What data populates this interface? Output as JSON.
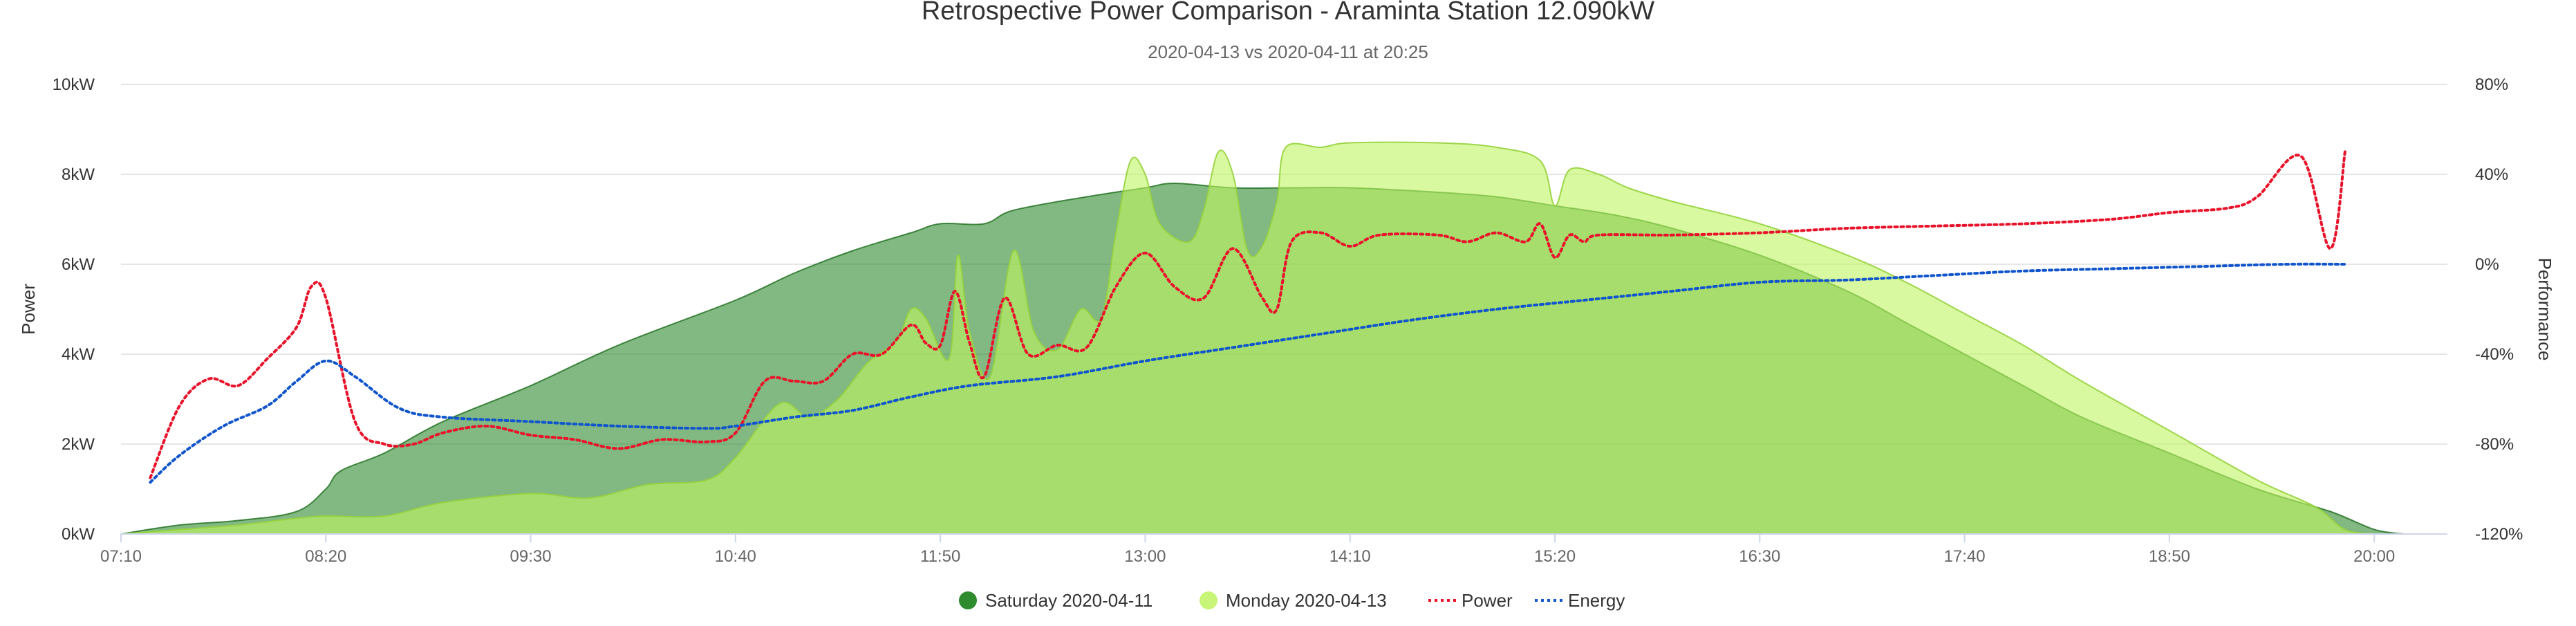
{
  "chart_data": {
    "type": "area",
    "title": "Retrospective Power Comparison - Araminta Station 12.090kW",
    "subtitle": "2020-04-13 vs 2020-04-11 at 20:25",
    "ylabel": "Power",
    "y2label": "Performance",
    "y_ticks": [
      "0kW",
      "2kW",
      "4kW",
      "6kW",
      "8kW",
      "10kW"
    ],
    "y2_ticks": [
      "-120%",
      "-80%",
      "-40%",
      "0%",
      "40%",
      "80%"
    ],
    "x_ticks": [
      "07:10",
      "08:20",
      "09:30",
      "10:40",
      "11:50",
      "13:00",
      "14:10",
      "15:20",
      "16:30",
      "17:40",
      "18:50",
      "20:00"
    ],
    "xlim": [
      "07:10",
      "20:25"
    ],
    "ylim": [
      0,
      10
    ],
    "y2lim": [
      -120,
      80
    ],
    "grid": true,
    "legend_position": "bottom",
    "series": [
      {
        "name": "Saturday 2020-04-11",
        "axis": "left",
        "unit": "kW",
        "color": "#2e8b2e",
        "points": [
          [
            "07:10",
            0
          ],
          [
            "07:30",
            0.2
          ],
          [
            "07:50",
            0.3
          ],
          [
            "08:10",
            0.5
          ],
          [
            "08:20",
            1.0
          ],
          [
            "08:25",
            1.4
          ],
          [
            "08:40",
            1.8
          ],
          [
            "09:00",
            2.5
          ],
          [
            "09:30",
            3.3
          ],
          [
            "10:00",
            4.2
          ],
          [
            "10:40",
            5.2
          ],
          [
            "11:00",
            5.8
          ],
          [
            "11:20",
            6.3
          ],
          [
            "11:40",
            6.7
          ],
          [
            "11:50",
            6.9
          ],
          [
            "12:05",
            6.9
          ],
          [
            "12:15",
            7.2
          ],
          [
            "12:40",
            7.5
          ],
          [
            "13:00",
            7.7
          ],
          [
            "13:10",
            7.8
          ],
          [
            "13:30",
            7.7
          ],
          [
            "13:50",
            7.7
          ],
          [
            "14:10",
            7.7
          ],
          [
            "14:40",
            7.6
          ],
          [
            "15:00",
            7.5
          ],
          [
            "15:20",
            7.3
          ],
          [
            "15:40",
            7.1
          ],
          [
            "16:00",
            6.8
          ],
          [
            "16:30",
            6.2
          ],
          [
            "17:00",
            5.4
          ],
          [
            "17:20",
            4.7
          ],
          [
            "17:40",
            4.0
          ],
          [
            "18:00",
            3.3
          ],
          [
            "18:20",
            2.6
          ],
          [
            "18:50",
            1.8
          ],
          [
            "19:20",
            1.0
          ],
          [
            "19:45",
            0.5
          ],
          [
            "20:00",
            0.1
          ],
          [
            "20:10",
            0.0
          ]
        ]
      },
      {
        "name": "Monday 2020-04-13",
        "axis": "left",
        "unit": "kW",
        "color": "#c8f577",
        "points": [
          [
            "07:10",
            0
          ],
          [
            "07:30",
            0.1
          ],
          [
            "07:50",
            0.2
          ],
          [
            "08:10",
            0.35
          ],
          [
            "08:20",
            0.4
          ],
          [
            "08:40",
            0.4
          ],
          [
            "09:00",
            0.7
          ],
          [
            "09:30",
            0.9
          ],
          [
            "09:50",
            0.8
          ],
          [
            "10:10",
            1.1
          ],
          [
            "10:30",
            1.2
          ],
          [
            "10:40",
            1.7
          ],
          [
            "10:55",
            2.9
          ],
          [
            "11:05",
            2.6
          ],
          [
            "11:15",
            3.0
          ],
          [
            "11:25",
            3.8
          ],
          [
            "11:35",
            4.3
          ],
          [
            "11:40",
            5.0
          ],
          [
            "11:45",
            4.8
          ],
          [
            "11:53",
            3.9
          ],
          [
            "11:56",
            6.2
          ],
          [
            "12:00",
            4.5
          ],
          [
            "12:07",
            3.5
          ],
          [
            "12:15",
            6.3
          ],
          [
            "12:22",
            4.5
          ],
          [
            "12:30",
            4.1
          ],
          [
            "12:38",
            5.0
          ],
          [
            "12:45",
            4.8
          ],
          [
            "12:50",
            6.7
          ],
          [
            "12:55",
            8.3
          ],
          [
            "13:00",
            8.0
          ],
          [
            "13:05",
            6.9
          ],
          [
            "13:15",
            6.5
          ],
          [
            "13:20",
            7.2
          ],
          [
            "13:25",
            8.5
          ],
          [
            "13:30",
            8.0
          ],
          [
            "13:35",
            6.3
          ],
          [
            "13:40",
            6.4
          ],
          [
            "13:45",
            7.4
          ],
          [
            "13:48",
            8.6
          ],
          [
            "14:00",
            8.6
          ],
          [
            "14:10",
            8.7
          ],
          [
            "14:40",
            8.7
          ],
          [
            "15:00",
            8.6
          ],
          [
            "15:15",
            8.3
          ],
          [
            "15:20",
            7.3
          ],
          [
            "15:25",
            8.1
          ],
          [
            "15:35",
            8.0
          ],
          [
            "15:45",
            7.7
          ],
          [
            "16:00",
            7.4
          ],
          [
            "16:30",
            6.9
          ],
          [
            "17:00",
            6.2
          ],
          [
            "17:20",
            5.6
          ],
          [
            "17:40",
            4.9
          ],
          [
            "18:00",
            4.2
          ],
          [
            "18:20",
            3.4
          ],
          [
            "18:50",
            2.3
          ],
          [
            "19:20",
            1.2
          ],
          [
            "19:40",
            0.6
          ],
          [
            "19:50",
            0.1
          ],
          [
            "20:00",
            0.0
          ]
        ]
      },
      {
        "name": "Power",
        "axis": "right",
        "unit": "%",
        "color": "#e8132a",
        "style": "dotted",
        "points": [
          [
            "07:20",
            -95
          ],
          [
            "07:30",
            -63
          ],
          [
            "07:40",
            -51
          ],
          [
            "07:50",
            -54
          ],
          [
            "08:00",
            -42
          ],
          [
            "08:10",
            -28
          ],
          [
            "08:15",
            -10
          ],
          [
            "08:20",
            -15
          ],
          [
            "08:30",
            -70
          ],
          [
            "08:40",
            -80
          ],
          [
            "08:50",
            -80
          ],
          [
            "09:00",
            -75
          ],
          [
            "09:15",
            -72
          ],
          [
            "09:30",
            -76
          ],
          [
            "09:45",
            -78
          ],
          [
            "10:00",
            -82
          ],
          [
            "10:15",
            -78
          ],
          [
            "10:30",
            -79
          ],
          [
            "10:40",
            -75
          ],
          [
            "10:50",
            -52
          ],
          [
            "11:00",
            -52
          ],
          [
            "11:10",
            -52
          ],
          [
            "11:20",
            -40
          ],
          [
            "11:30",
            -40
          ],
          [
            "11:40",
            -27
          ],
          [
            "11:45",
            -35
          ],
          [
            "11:50",
            -36
          ],
          [
            "11:55",
            -12
          ],
          [
            "12:00",
            -35
          ],
          [
            "12:05",
            -50
          ],
          [
            "12:12",
            -15
          ],
          [
            "12:20",
            -40
          ],
          [
            "12:30",
            -36
          ],
          [
            "12:40",
            -37
          ],
          [
            "12:50",
            -10
          ],
          [
            "13:00",
            5
          ],
          [
            "13:10",
            -10
          ],
          [
            "13:20",
            -15
          ],
          [
            "13:30",
            7
          ],
          [
            "13:40",
            -15
          ],
          [
            "13:45",
            -20
          ],
          [
            "13:50",
            10
          ],
          [
            "14:00",
            14
          ],
          [
            "14:10",
            8
          ],
          [
            "14:20",
            13
          ],
          [
            "14:40",
            13
          ],
          [
            "14:50",
            10
          ],
          [
            "15:00",
            14
          ],
          [
            "15:10",
            10
          ],
          [
            "15:15",
            18
          ],
          [
            "15:20",
            3
          ],
          [
            "15:25",
            13
          ],
          [
            "15:30",
            10
          ],
          [
            "15:35",
            13
          ],
          [
            "16:00",
            13
          ],
          [
            "16:30",
            14
          ],
          [
            "17:00",
            16
          ],
          [
            "17:30",
            17
          ],
          [
            "18:00",
            18
          ],
          [
            "18:30",
            20
          ],
          [
            "18:50",
            23
          ],
          [
            "19:10",
            25
          ],
          [
            "19:20",
            30
          ],
          [
            "19:35",
            48
          ],
          [
            "19:45",
            7
          ],
          [
            "19:50",
            50
          ]
        ]
      },
      {
        "name": "Energy",
        "axis": "right",
        "unit": "%",
        "color": "#1155cc",
        "style": "dotted",
        "points": [
          [
            "07:20",
            -97
          ],
          [
            "07:30",
            -85
          ],
          [
            "07:45",
            -72
          ],
          [
            "08:00",
            -63
          ],
          [
            "08:10",
            -52
          ],
          [
            "08:20",
            -43
          ],
          [
            "08:30",
            -50
          ],
          [
            "08:45",
            -64
          ],
          [
            "09:00",
            -68
          ],
          [
            "09:30",
            -70
          ],
          [
            "10:00",
            -72
          ],
          [
            "10:30",
            -73
          ],
          [
            "10:40",
            -72
          ],
          [
            "11:00",
            -68
          ],
          [
            "11:20",
            -65
          ],
          [
            "11:40",
            -59
          ],
          [
            "12:00",
            -54
          ],
          [
            "12:30",
            -50
          ],
          [
            "13:00",
            -43
          ],
          [
            "13:30",
            -37
          ],
          [
            "14:00",
            -31
          ],
          [
            "14:30",
            -25
          ],
          [
            "15:00",
            -20
          ],
          [
            "15:30",
            -16
          ],
          [
            "16:00",
            -12
          ],
          [
            "16:30",
            -8
          ],
          [
            "17:00",
            -7
          ],
          [
            "17:30",
            -5
          ],
          [
            "18:00",
            -3
          ],
          [
            "18:30",
            -2
          ],
          [
            "19:00",
            -1
          ],
          [
            "19:30",
            0
          ],
          [
            "19:50",
            0
          ]
        ]
      }
    ]
  }
}
